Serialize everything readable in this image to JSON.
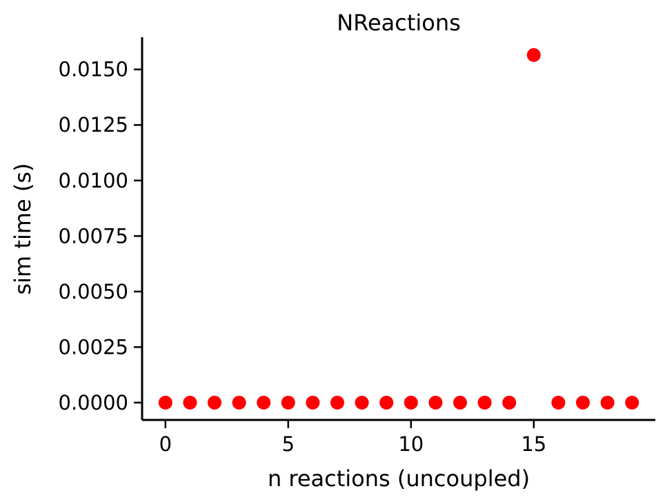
{
  "chart_data": {
    "type": "scatter",
    "title": "NReactions",
    "xlabel": "n reactions (uncoupled)",
    "ylabel": "sim time (s)",
    "xlim": [
      -0.95,
      19.95
    ],
    "ylim": [
      -0.00078,
      0.01645
    ],
    "x_ticks": [
      0,
      5,
      10,
      15
    ],
    "x_tick_labels": [
      "0",
      "5",
      "10",
      "15"
    ],
    "y_ticks": [
      0,
      0.0025,
      0.005,
      0.0075,
      0.01,
      0.0125,
      0.015
    ],
    "y_tick_labels": [
      "0.0000",
      "0.0025",
      "0.0050",
      "0.0075",
      "0.0100",
      "0.0125",
      "0.0150"
    ],
    "grid": false,
    "series": [
      {
        "color": "#ff0000",
        "x": [
          0,
          1,
          2,
          3,
          4,
          5,
          6,
          7,
          8,
          9,
          10,
          11,
          12,
          13,
          14,
          15,
          16,
          17,
          18,
          19
        ],
        "y": [
          0,
          0,
          0,
          0,
          0,
          0,
          0,
          0,
          0,
          0,
          0,
          0,
          0,
          0,
          0,
          0.01565,
          0,
          0,
          0,
          0
        ]
      }
    ]
  }
}
